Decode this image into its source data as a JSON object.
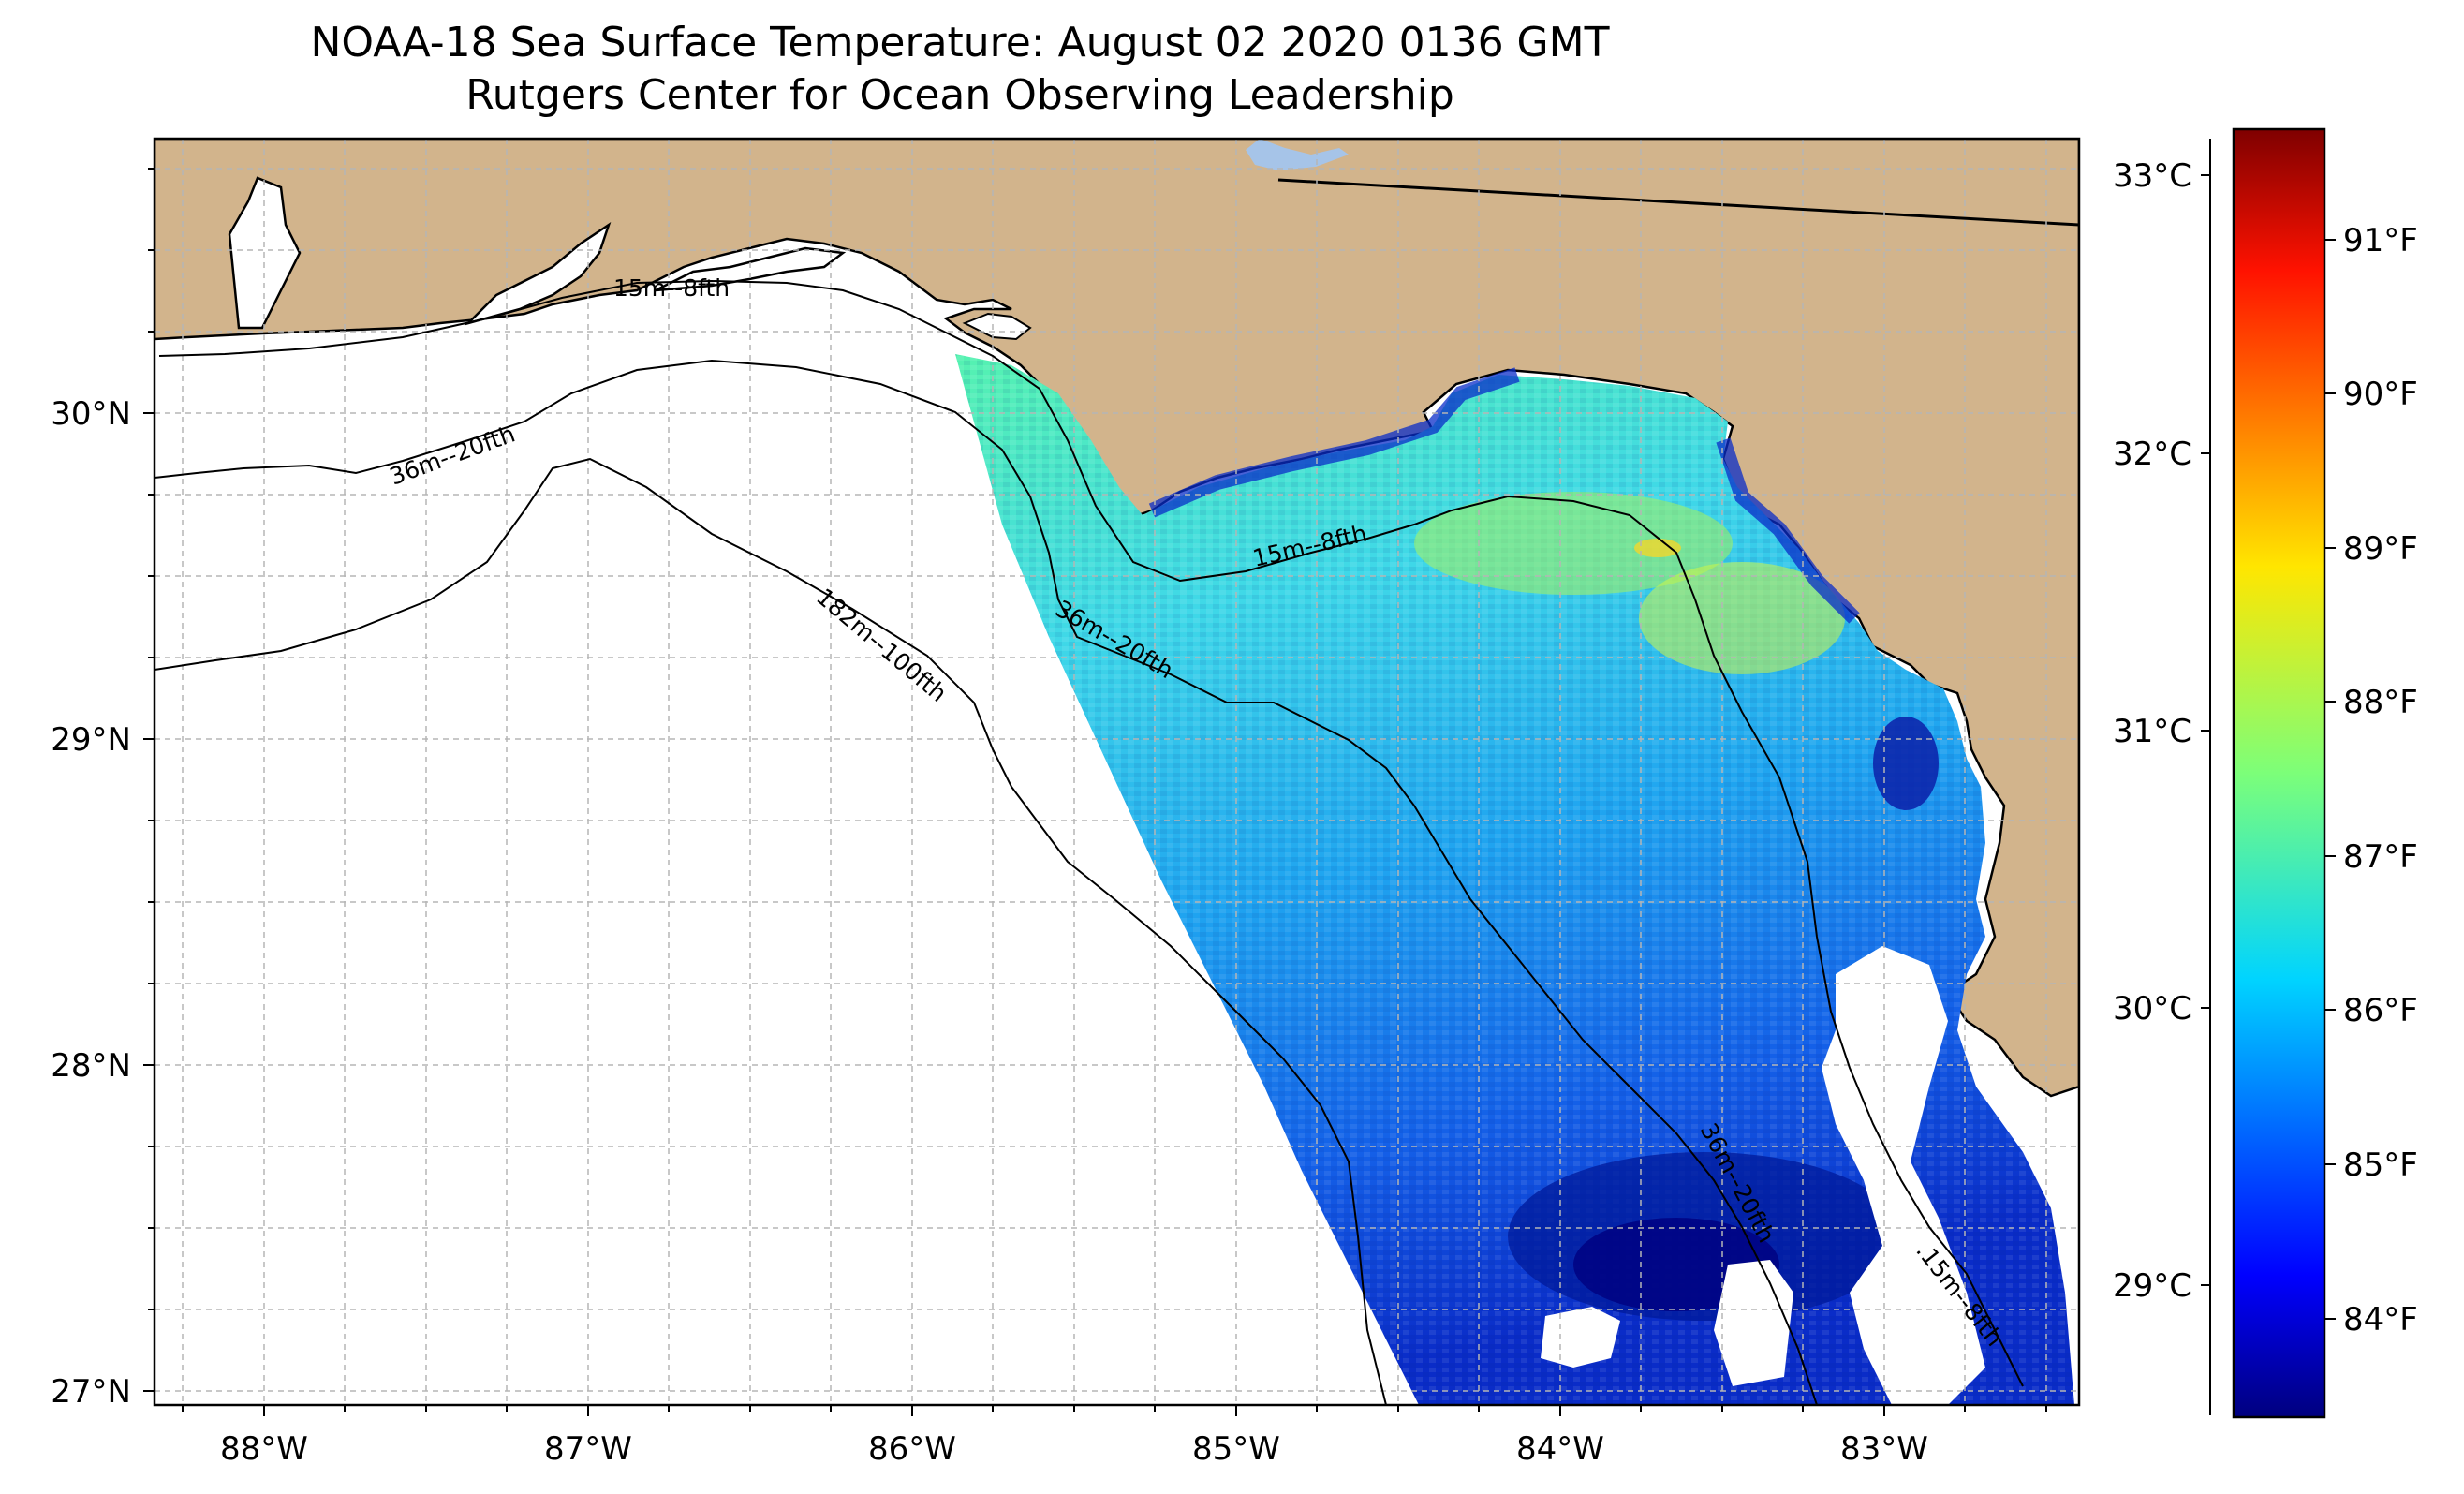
{
  "title": {
    "line1": "NOAA-18 Sea Surface Temperature: August 02 2020 0136 GMT",
    "line2": "Rutgers Center for Ocean Observing Leadership"
  },
  "map": {
    "lon_range": [
      -88.35,
      -82.4
    ],
    "lat_range": [
      26.95,
      30.85
    ],
    "lon_ticks": [
      "88°W",
      "87°W",
      "86°W",
      "85°W",
      "84°W",
      "83°W"
    ],
    "lat_ticks": [
      "30°N",
      "29°N",
      "28°N",
      "27°N"
    ],
    "land_color": "#d2b48c",
    "ocean_color": "#ffffff",
    "lake_color": "#a6c4e8",
    "grid_color": "#b5b5b5"
  },
  "contours": [
    {
      "label": "15m--8fth"
    },
    {
      "label": "36m--20fth"
    },
    {
      "label": "15m--8fth"
    },
    {
      "label": "36m--20fth"
    },
    {
      "label": "182m--100fth"
    },
    {
      "label": "36m--20fth"
    },
    {
      "label": ".15m--8fth"
    }
  ],
  "colorbar": {
    "celsius_ticks": [
      "33°C",
      "32°C",
      "31°C",
      "30°C",
      "29°C"
    ],
    "fahrenheit_ticks": [
      "91°F",
      "90°F",
      "89°F",
      "88°F",
      "87°F",
      "86°F",
      "85°F",
      "84°F"
    ],
    "colormap": "jet"
  }
}
